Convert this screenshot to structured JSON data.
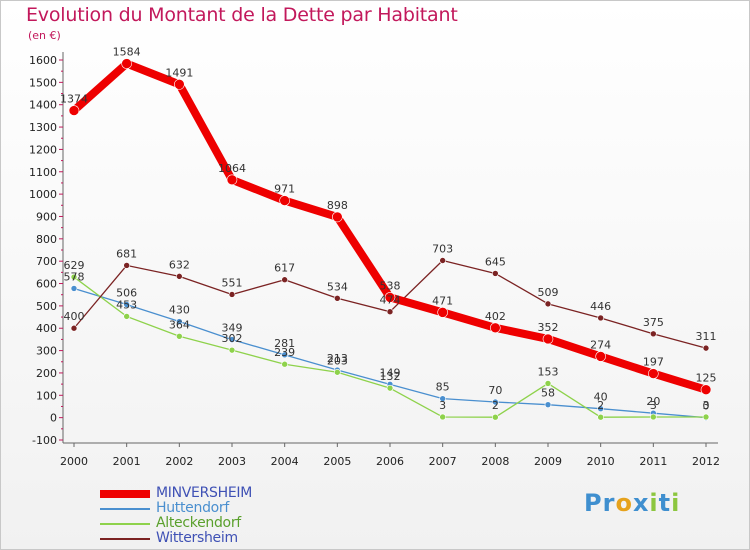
{
  "title": "Evolution du Montant de la Dette par Habitant",
  "unit_label": "(en €)",
  "brand": {
    "name": "Proxiti",
    "letters": [
      "P",
      "r",
      "o",
      "x",
      "i",
      "t",
      "i"
    ],
    "colors": [
      "#3f8fcf",
      "#3f8fcf",
      "#e6a21c",
      "#3f8fcf",
      "#8cc63f",
      "#3f8fcf",
      "#8cc63f"
    ]
  },
  "chart_data": {
    "type": "line",
    "title": "Evolution du Montant de la Dette par Habitant",
    "ylabel": "(en €)",
    "xlabel": "",
    "categories": [
      "2000",
      "2001",
      "2002",
      "2003",
      "2004",
      "2005",
      "2006",
      "2007",
      "2008",
      "2009",
      "2010",
      "2011",
      "2012"
    ],
    "ylim": [
      -100,
      1600
    ],
    "yticks": [
      -100,
      0,
      100,
      200,
      300,
      400,
      500,
      600,
      700,
      800,
      900,
      1000,
      1100,
      1200,
      1300,
      1400,
      1500,
      1600
    ],
    "grid": false,
    "legend_position": "bottom-left",
    "series": [
      {
        "name": "MINVERSHEIM",
        "color": "#ee0000",
        "values": [
          1374,
          1584,
          1491,
          1064,
          971,
          898,
          538,
          471,
          402,
          352,
          274,
          197,
          125
        ]
      },
      {
        "name": "Huttendorf",
        "color": "#4a8fcf",
        "values": [
          578,
          506,
          430,
          349,
          281,
          213,
          149,
          85,
          70,
          58,
          40,
          20,
          0
        ]
      },
      {
        "name": "Alteckendorf",
        "color": "#8ed24b",
        "values": [
          629,
          453,
          364,
          302,
          239,
          203,
          132,
          3,
          2,
          153,
          2,
          3,
          3
        ]
      },
      {
        "name": "Wittersheim",
        "color": "#7b2323",
        "values": [
          400,
          681,
          632,
          551,
          617,
          534,
          474,
          703,
          645,
          509,
          446,
          375,
          311
        ]
      }
    ]
  }
}
